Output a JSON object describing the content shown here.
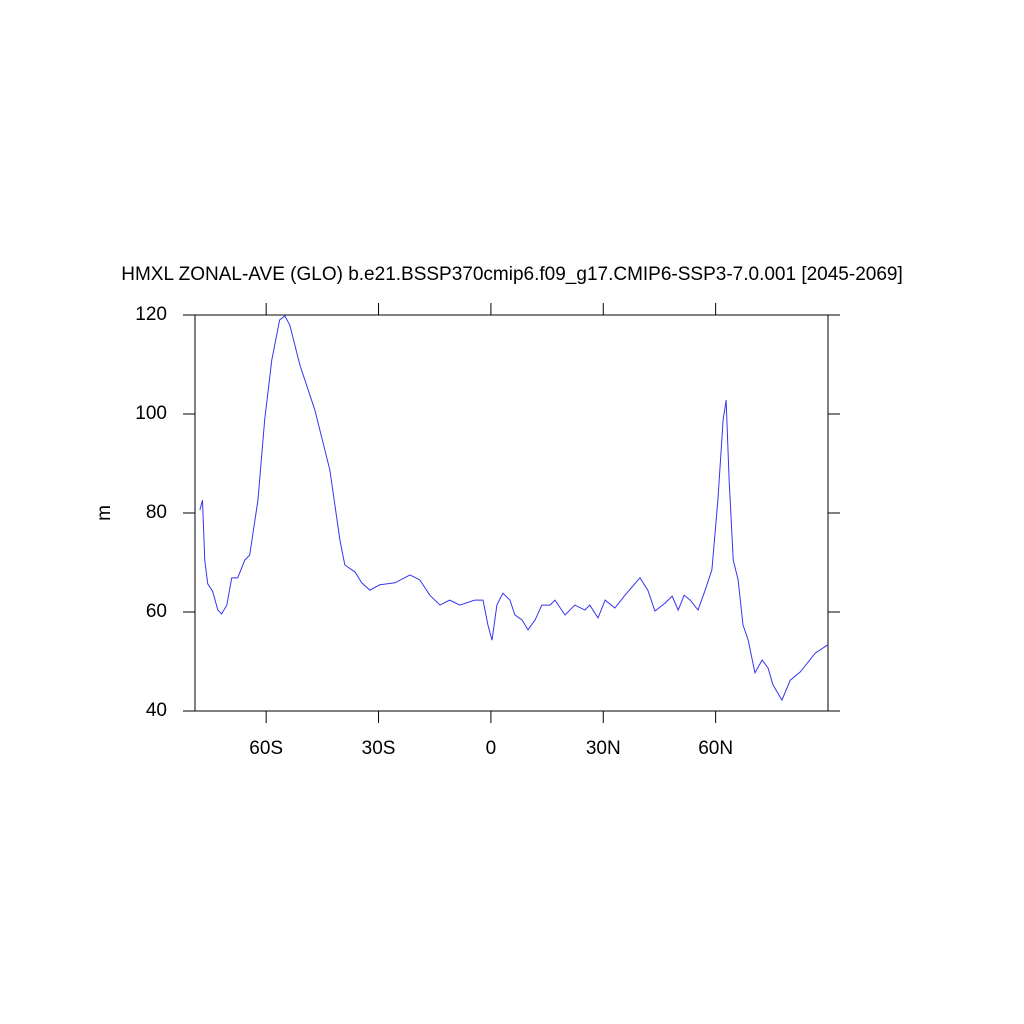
{
  "chart_data": {
    "type": "line",
    "title": "HMXL ZONAL-AVE (GLO) b.e21.BSSP370cmip6.f09_g17.CMIP6-SSP3-7.0.001 [2045-2069]",
    "y_label": "m",
    "xlim": [
      -79,
      90
    ],
    "xticks": [
      {
        "value": -60,
        "label": "60S"
      },
      {
        "value": -30,
        "label": "30S"
      },
      0,
      {
        "value": 30,
        "label": "30N"
      },
      {
        "value": 60,
        "label": "60N"
      }
    ],
    "ylim": [
      40,
      120
    ],
    "yticks": [
      40,
      60,
      80,
      100,
      120
    ],
    "series": [
      {
        "color": "#3535f0",
        "x": [
          -77.7,
          -77,
          -76.4,
          -75.6,
          -74.3,
          -72.9,
          -71.9,
          -70.5,
          -69.2,
          -67.6,
          -65.7,
          -64.4,
          -62.2,
          -60.4,
          -58.5,
          -56.4,
          -55,
          -53.7,
          -51,
          -47,
          -43,
          -40.3,
          -39,
          -36.3,
          -34.5,
          -32.3,
          -29.7,
          -25.6,
          -21.6,
          -19,
          -16.3,
          -13.6,
          -11,
          -8.3,
          -4.3,
          -2.1,
          -0.8,
          0.3,
          1.6,
          3.2,
          5.1,
          6.4,
          8.3,
          9.9,
          11.8,
          13.6,
          15.8,
          17.1,
          19.8,
          22.4,
          25.1,
          26.4,
          28.6,
          30.5,
          33.1,
          35.8,
          39.8,
          41.9,
          43.8,
          46.5,
          48.4,
          50,
          51.6,
          53.2,
          55.3,
          57.2,
          59,
          60.6,
          62,
          62.8,
          63.6,
          64.7,
          66,
          67.3,
          68.7,
          70.5,
          72.4,
          74,
          75.3,
          77.7,
          79.9,
          82.6,
          86.6,
          90
        ],
        "values": [
          80.6,
          82.6,
          70.5,
          65.7,
          64.2,
          60.4,
          59.6,
          61.4,
          66.9,
          66.9,
          70.5,
          71.5,
          82.6,
          98.8,
          110.9,
          119,
          119.8,
          118,
          109.9,
          100.8,
          88.7,
          74.5,
          69.5,
          68.1,
          65.9,
          64.4,
          65.5,
          65.9,
          67.5,
          66.5,
          63.4,
          61.4,
          62.4,
          61.4,
          62.4,
          62.4,
          57.4,
          54.3,
          61.4,
          63.8,
          62.4,
          59.4,
          58.4,
          56.4,
          58.4,
          61.4,
          61.4,
          62.4,
          59.4,
          61.4,
          60.4,
          61.4,
          58.8,
          62.4,
          60.8,
          63.4,
          66.9,
          64.4,
          60.2,
          61.8,
          63.2,
          60.4,
          63.4,
          62.4,
          60.4,
          64.4,
          68.5,
          82.6,
          98.8,
          102.8,
          86.7,
          70.5,
          66.5,
          57.4,
          54.3,
          47.7,
          50.3,
          48.7,
          45.3,
          42.2,
          46.2,
          47.9,
          51.7,
          53.4
        ]
      }
    ]
  }
}
